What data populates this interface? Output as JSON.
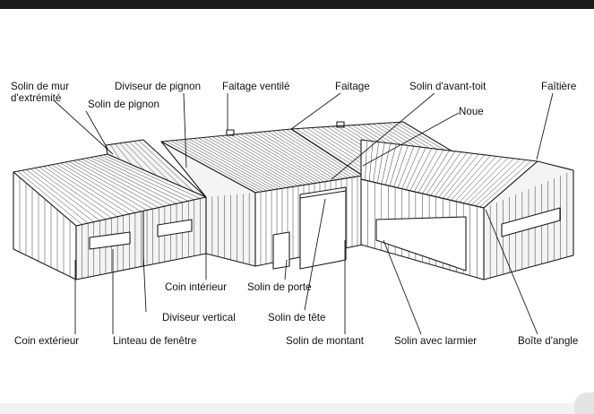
{
  "colors": {
    "ink": "#1a1a1a",
    "background": "#ffffff",
    "top_bar": "#1a1a1a"
  },
  "labels": {
    "solin_mur_extremite": [
      "Solin de mur",
      "d'extrémité"
    ],
    "solin_pignon": "Solin de pignon",
    "diviseur_pignon": "Diviseur de pignon",
    "faitage_ventile": "Faitage ventilé",
    "faitage": "Faitage",
    "solin_avant_toit": "Solin d'avant-toit",
    "noue": "Noue",
    "faitiere": "Faîtière",
    "coin_interieur": "Coin intérieur",
    "solin_porte": "Solin de porte",
    "diviseur_vertical": "Diviseur vertical",
    "solin_tete": "Solin de tête",
    "coin_exterieur": "Coin extérieur",
    "linteau_fenetre": "Linteau de fenêtre",
    "solin_montant": "Solin de montant",
    "solin_larmier": "Solin avec larmier",
    "boite_angle": "Boîte d'angle"
  }
}
